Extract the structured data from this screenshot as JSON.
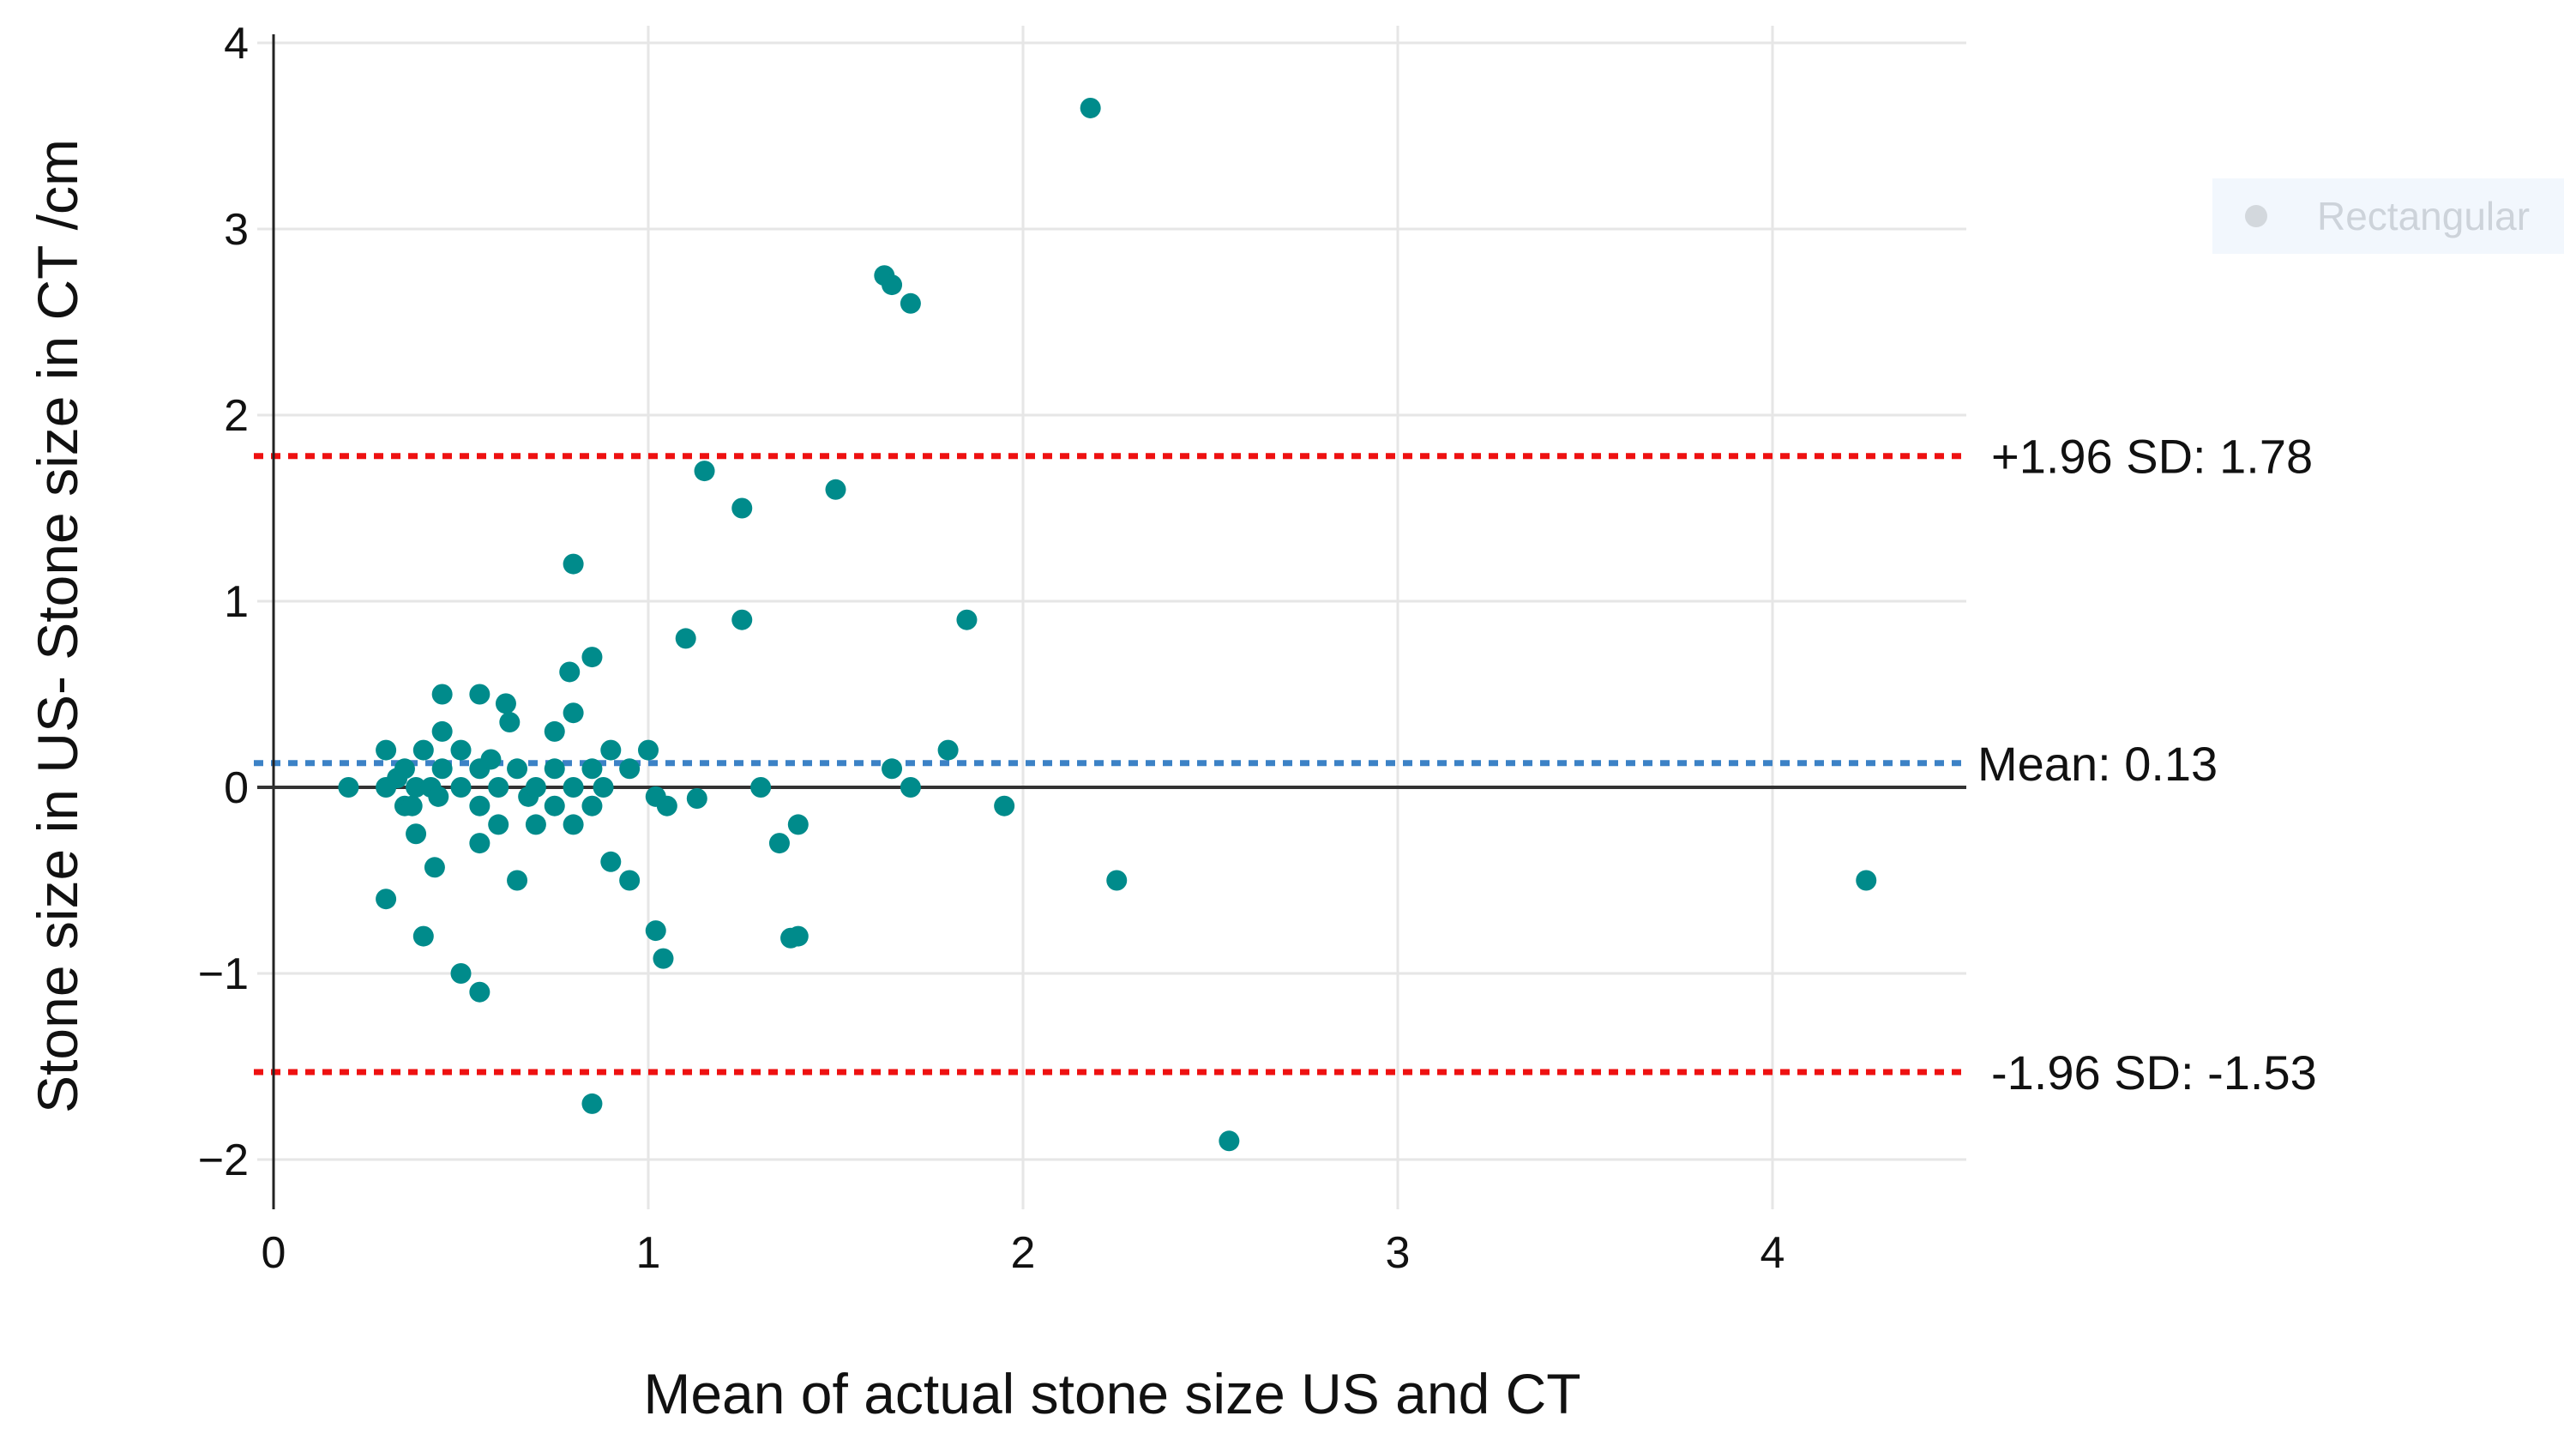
{
  "chart_data": {
    "type": "scatter",
    "title": "",
    "xlabel": "Mean of actual stone size US and CT",
    "ylabel": "Stone size in US- Stone size in CT /cm",
    "xlim": [
      0,
      4.5
    ],
    "ylim": [
      -2.3,
      4.1
    ],
    "xticks": [
      0,
      1,
      2,
      3,
      4
    ],
    "yticks": [
      -2,
      -1,
      0,
      1,
      2,
      3,
      4
    ],
    "xtick_labels": [
      "0",
      "1",
      "2",
      "3",
      "4"
    ],
    "ytick_labels": [
      "−2",
      "−1",
      "0",
      "1",
      "2",
      "3",
      "4"
    ],
    "grid": true,
    "point_color": "#008B8B",
    "points": [
      [
        0.2,
        0.0
      ],
      [
        0.3,
        0.2
      ],
      [
        0.3,
        0.0
      ],
      [
        0.3,
        -0.6
      ],
      [
        0.33,
        0.05
      ],
      [
        0.35,
        0.1
      ],
      [
        0.35,
        -0.1
      ],
      [
        0.37,
        -0.1
      ],
      [
        0.38,
        0.0
      ],
      [
        0.38,
        -0.25
      ],
      [
        0.4,
        0.2
      ],
      [
        0.4,
        -0.8
      ],
      [
        0.42,
        0.0
      ],
      [
        0.43,
        -0.43
      ],
      [
        0.44,
        -0.05
      ],
      [
        0.45,
        0.5
      ],
      [
        0.45,
        0.3
      ],
      [
        0.45,
        0.1
      ],
      [
        0.5,
        0.2
      ],
      [
        0.5,
        0.0
      ],
      [
        0.5,
        -1.0
      ],
      [
        0.55,
        0.5
      ],
      [
        0.55,
        0.1
      ],
      [
        0.55,
        -0.1
      ],
      [
        0.55,
        -0.3
      ],
      [
        0.55,
        -1.1
      ],
      [
        0.58,
        0.15
      ],
      [
        0.6,
        0.0
      ],
      [
        0.6,
        -0.2
      ],
      [
        0.62,
        0.45
      ],
      [
        0.63,
        0.35
      ],
      [
        0.65,
        0.1
      ],
      [
        0.65,
        -0.5
      ],
      [
        0.68,
        -0.05
      ],
      [
        0.7,
        0.0
      ],
      [
        0.7,
        -0.2
      ],
      [
        0.75,
        0.3
      ],
      [
        0.75,
        0.1
      ],
      [
        0.75,
        -0.1
      ],
      [
        0.8,
        1.2
      ],
      [
        0.79,
        0.62
      ],
      [
        0.8,
        0.4
      ],
      [
        0.8,
        0.0
      ],
      [
        0.8,
        -0.2
      ],
      [
        0.85,
        0.7
      ],
      [
        0.85,
        0.1
      ],
      [
        0.85,
        -0.1
      ],
      [
        0.85,
        -1.7
      ],
      [
        0.88,
        0.0
      ],
      [
        0.9,
        0.2
      ],
      [
        0.9,
        -0.4
      ],
      [
        0.95,
        0.1
      ],
      [
        0.95,
        -0.5
      ],
      [
        1.0,
        0.2
      ],
      [
        1.02,
        -0.05
      ],
      [
        1.02,
        -0.77
      ],
      [
        1.04,
        -0.92
      ],
      [
        1.05,
        -0.1
      ],
      [
        1.1,
        0.8
      ],
      [
        1.13,
        -0.06
      ],
      [
        1.15,
        1.7
      ],
      [
        1.3,
        0.0
      ],
      [
        1.25,
        1.5
      ],
      [
        1.25,
        0.9
      ],
      [
        1.35,
        -0.3
      ],
      [
        1.38,
        -0.81
      ],
      [
        1.4,
        -0.8
      ],
      [
        1.4,
        -0.2
      ],
      [
        1.5,
        1.6
      ],
      [
        1.63,
        2.75
      ],
      [
        1.65,
        2.7
      ],
      [
        1.65,
        0.1
      ],
      [
        1.7,
        2.6
      ],
      [
        1.7,
        0.0
      ],
      [
        1.8,
        0.2
      ],
      [
        1.85,
        0.9
      ],
      [
        1.95,
        -0.1
      ],
      [
        2.18,
        3.65
      ],
      [
        2.25,
        -0.5
      ],
      [
        2.55,
        -1.9
      ],
      [
        4.25,
        -0.5
      ]
    ],
    "reference_lines": [
      {
        "name": "upper-loa",
        "y": 1.78,
        "label": "+1.96 SD: 1.78",
        "color": "#ee1111",
        "style": "dotted"
      },
      {
        "name": "mean",
        "y": 0.13,
        "label": "Mean: 0.13",
        "color": "#3c82c6",
        "style": "dotted"
      },
      {
        "name": "lower-loa",
        "y": -1.53,
        "label": "-1.96 SD: -1.53",
        "color": "#ee1111",
        "style": "dotted"
      }
    ],
    "legend": {
      "label": "Rectangular",
      "placement": "top-right",
      "faded": true
    }
  }
}
